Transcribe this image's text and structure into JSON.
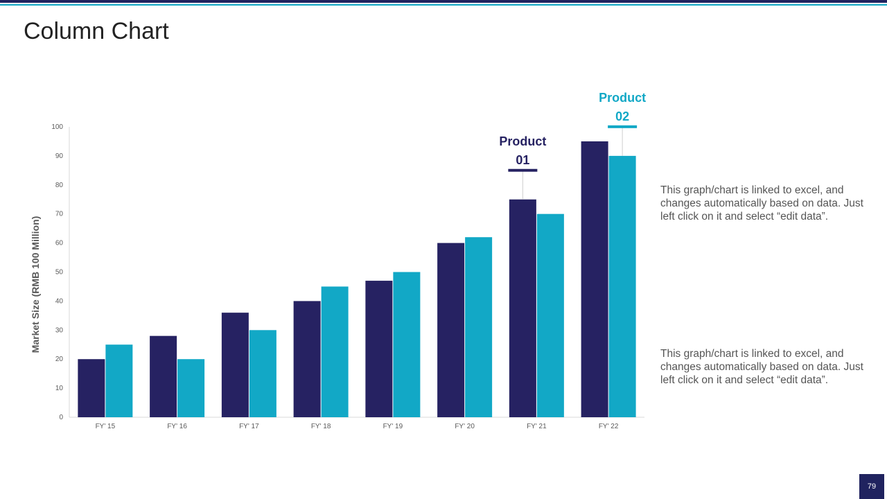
{
  "slide": {
    "title": "Column Chart",
    "page_number": "79",
    "descriptions": [
      "This graph/chart is linked to excel, and changes automatically based on data. Just left click on it and select “edit data”.",
      "This graph/chart is linked to excel, and changes automatically based on data. Just left click on it and select “edit data”."
    ]
  },
  "chart_data": {
    "type": "bar",
    "title": "",
    "xlabel": "",
    "ylabel": "Market Size (RMB 100 Million)",
    "ylim": [
      0,
      100
    ],
    "yticks": [
      0,
      10,
      20,
      30,
      40,
      50,
      60,
      70,
      80,
      90,
      100
    ],
    "grid": false,
    "categories": [
      "FY' 15",
      "FY' 16",
      "FY' 17",
      "FY' 18",
      "FY' 19",
      "FY' 20",
      "FY' 21",
      "FY' 22"
    ],
    "series": [
      {
        "name": "Product 01",
        "color": "#262262",
        "values": [
          20,
          28,
          36,
          40,
          47,
          60,
          75,
          95
        ]
      },
      {
        "name": "Product 02",
        "color": "#12a8c6",
        "values": [
          25,
          20,
          30,
          45,
          50,
          62,
          70,
          90
        ]
      }
    ],
    "callouts": [
      {
        "line1": "Product",
        "line2": "01",
        "series": 0,
        "category": 6,
        "color": "#262262"
      },
      {
        "line1": "Product",
        "line2": "02",
        "series": 1,
        "category": 7,
        "color": "#12a8c6"
      }
    ]
  }
}
